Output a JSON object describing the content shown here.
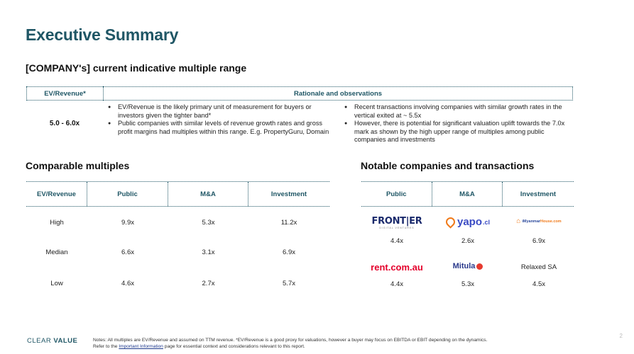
{
  "title": "Executive Summary",
  "subtitle": "[COMPANY's] current indicative multiple range",
  "range_table": {
    "col1_header": "EV/Revenue*",
    "col2_header": "Rationale and observations",
    "value": "5.0 - 6.0x",
    "left_bullets": [
      "EV/Revenue is the likely primary unit of measurement for buyers or investors given the tighter band*",
      "Public companies with similar levels of revenue growth rates and gross profit margins had multiples within this range. E.g. PropertyGuru, Domain"
    ],
    "right_bullets": [
      "Recent transactions involving companies with similar growth rates in the vertical exited at ~ 5.5x",
      "However, there is potential for significant valuation uplift towards the 7.0x mark as shown by the high upper range of multiples among public companies and investments"
    ]
  },
  "comparable": {
    "title": "Comparable multiples",
    "headers": [
      "EV/Revenue",
      "Public",
      "M&A",
      "Investment"
    ],
    "rows": [
      {
        "label": "High",
        "public": "9.9x",
        "ma": "5.3x",
        "investment": "11.2x"
      },
      {
        "label": "Median",
        "public": "6.6x",
        "ma": "3.1x",
        "investment": "6.9x"
      },
      {
        "label": "Low",
        "public": "4.6x",
        "ma": "2.7x",
        "investment": "5.7x"
      }
    ]
  },
  "notable": {
    "title": "Notable companies and transactions",
    "headers": [
      "Public",
      "M&A",
      "Investment"
    ],
    "logos": {
      "frontier": "FRONT|ER",
      "frontier_sub": "DIGITAL VENTURES",
      "yapo": "yapo",
      "yapo_suffix": ".cl",
      "myanmar_a": "iMyanmar",
      "myanmar_b": "House.com",
      "rent": "rent.com.au",
      "mitula": "Mitula",
      "relaxed": "Relaxed SA"
    },
    "row1_values": [
      "4.4x",
      "2.6x",
      "6.9x"
    ],
    "row2_values": [
      "4.4x",
      "5.3x",
      "4.5x"
    ]
  },
  "footer": {
    "brand_a": "CLEAR",
    "brand_b": "VALUE",
    "notes_line1": "Notes: All multiples are EV/Revenue and assumed on TTM revenue. *EV/Revenue is a good proxy for valuations, however a buyer may focus on EBITDA or EBIT depending on the dynamics.",
    "notes_line2_pre": "Refer to the ",
    "notes_link": "Important Information",
    "notes_line2_post": " page for essential context and considerations relevant to this report.",
    "page_number": "2"
  },
  "colors": {
    "accent": "#1f5665",
    "rent_red": "#e4002b",
    "yapo_blue": "#3a4bc4",
    "orange": "#f07a1a"
  }
}
